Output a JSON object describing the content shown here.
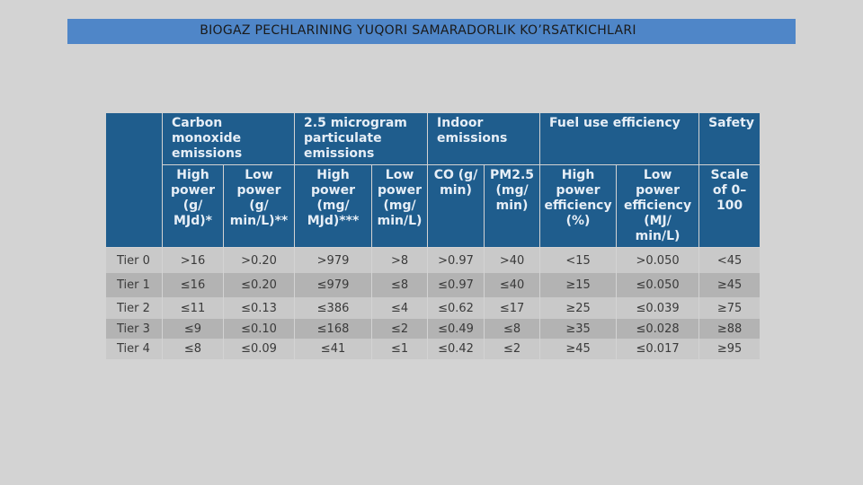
{
  "title": "BIOGAZ PECHLARINING YUQORI SAMARADORLIK KO’RSATKICHLARI",
  "table": {
    "header_groups": [
      {
        "label": "Carbon monoxide emissions",
        "span": 2
      },
      {
        "label": "2.5 microgram particulate emissions",
        "span": 2
      },
      {
        "label": "Indoor emissions",
        "span": 2
      },
      {
        "label": "Fuel use efficiency",
        "span": 2
      },
      {
        "label": "Safety",
        "span": 1
      }
    ],
    "subheaders": [
      "High power (g/ MJd)*",
      "Low power (g/ min/L)**",
      "High power (mg/ MJd)***",
      "Low power (mg/ min/L)",
      "CO (g/ min)",
      "PM2.5 (mg/ min)",
      "High power efficiency (%)",
      "Low power efficiency (MJ/ min/L)",
      "Scale of 0–100"
    ],
    "rows": [
      [
        "Tier 0",
        ">16",
        ">0.20",
        ">979",
        ">8",
        ">0.97",
        ">40",
        "<15",
        ">0.050",
        "<45"
      ],
      [
        "Tier 1",
        "≤16",
        "≤0.20",
        "≤979",
        "≤8",
        "≤0.97",
        "≤40",
        "≥15",
        "≤0.050",
        "≥45"
      ],
      [
        "Tier 2",
        "≤11",
        "≤0.13",
        "≤386",
        "≤4",
        "≤0.62",
        "≤17",
        "≥25",
        "≤0.039",
        "≥75"
      ],
      [
        "Tier 3",
        "≤9",
        "≤0.10",
        "≤168",
        "≤2",
        "≤0.49",
        "≤8",
        "≥35",
        "≤0.028",
        "≥88"
      ],
      [
        "Tier 4",
        "≤8",
        "≤0.09",
        "≤41",
        "≤1",
        "≤0.42",
        "≤2",
        "≥45",
        "≤0.017",
        "≥95"
      ]
    ]
  }
}
